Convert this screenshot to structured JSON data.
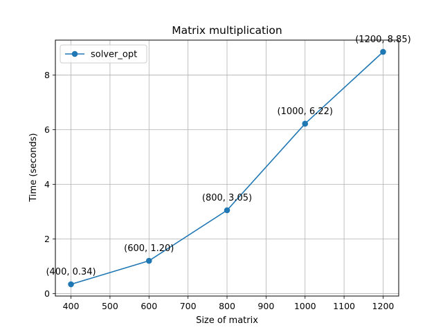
{
  "chart_data": {
    "type": "line",
    "title": "Matrix multiplication",
    "xlabel": "Size of matrix",
    "ylabel": "Time (seconds)",
    "x": [
      400,
      600,
      800,
      1000,
      1200
    ],
    "series": [
      {
        "name": "solver_opt",
        "values": [
          0.34,
          1.2,
          3.05,
          6.22,
          8.85
        ],
        "color": "#1f77b4"
      }
    ],
    "annotations": [
      "(400, 0.34)",
      "(600, 1.20)",
      "(800, 3.05)",
      "(1000, 6.22)",
      "(1200, 8.85)"
    ],
    "xticks": [
      400,
      500,
      600,
      700,
      800,
      900,
      1000,
      1100,
      1200
    ],
    "yticks": [
      0,
      2,
      4,
      6,
      8
    ],
    "xlim": [
      360,
      1240
    ],
    "ylim": [
      -0.09,
      9.28
    ],
    "grid": true,
    "legend_position": "top-left"
  }
}
